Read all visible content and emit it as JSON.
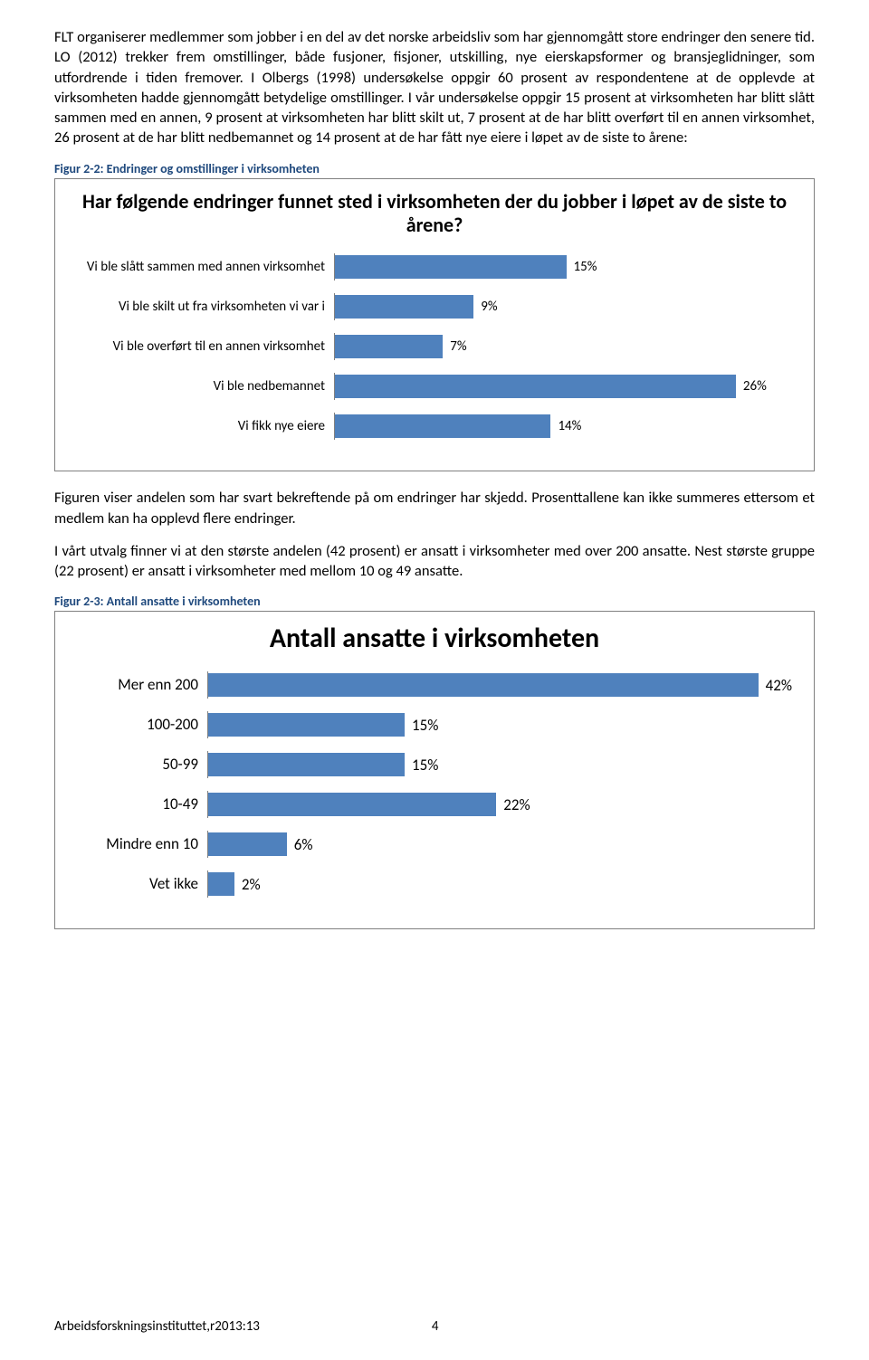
{
  "text": {
    "p1": "FLT organiserer medlemmer som jobber i en del av det norske arbeidsliv som har gjennomgått store endringer den senere tid. LO (2012) trekker frem omstillinger, både fusjoner, fisjoner, utskilling, nye eierskapsformer og bransjeglidninger, som utfordrende i tiden fremover. I Olbergs (1998) undersøkelse oppgir 60 prosent av respondentene at de opplevde at virksomheten hadde gjennomgått betydelige omstillinger. I vår undersøkelse oppgir 15 prosent at virksomheten har blitt slått sammen med en annen, 9 prosent at virksomheten har blitt skilt ut, 7 prosent at de har blitt overført til en annen virksomhet, 26 prosent at de har blitt nedbemannet og 14 prosent at de har fått nye eiere i løpet av de siste to årene:",
    "p2": "Figuren viser andelen som har svart bekreftende på om endringer har skjedd. Prosenttallene kan ikke summeres ettersom et medlem kan ha opplevd flere endringer.",
    "p3": "I vårt utvalg finner vi at den største andelen (42 prosent) er ansatt i virksomheter med over 200 ansatte. Nest største gruppe (22 prosent) er ansatt i virksomheter med mellom 10 og 49 ansatte."
  },
  "chart1": {
    "caption": "Figur 2-2: Endringer og omstillinger i virksomheten",
    "title": "Har følgende endringer funnet sted i virksomheten der du jobber i løpet av de siste to årene?",
    "title_fontsize": 22,
    "label_fontsize": 15,
    "value_fontsize": 15,
    "label_width": 290,
    "bar_color": "#4f81bd",
    "max_value": 30,
    "items": [
      {
        "label": "Vi ble slått sammen med annen virksomhet",
        "value": 15,
        "display": "15%"
      },
      {
        "label": "Vi ble skilt ut fra virksomheten vi var i",
        "value": 9,
        "display": "9%"
      },
      {
        "label": "Vi ble overført til en annen virksomhet",
        "value": 7,
        "display": "7%"
      },
      {
        "label": "Vi ble nedbemannet",
        "value": 26,
        "display": "26%"
      },
      {
        "label": "Vi fikk nye eiere",
        "value": 14,
        "display": "14%"
      }
    ]
  },
  "chart2": {
    "caption": "Figur 2-3: Antall ansatte i virksomheten",
    "title": "Antall ansatte i virksomheten",
    "title_fontsize": 30,
    "label_fontsize": 17,
    "value_fontsize": 17,
    "label_width": 150,
    "bar_color": "#4f81bd",
    "max_value": 45,
    "items": [
      {
        "label": "Mer enn 200",
        "value": 42,
        "display": "42%"
      },
      {
        "label": "100-200",
        "value": 15,
        "display": "15%"
      },
      {
        "label": "50-99",
        "value": 15,
        "display": "15%"
      },
      {
        "label": "10-49",
        "value": 22,
        "display": "22%"
      },
      {
        "label": "Mindre enn 10",
        "value": 6,
        "display": "6%"
      },
      {
        "label": "Vet ikke",
        "value": 2,
        "display": "2%"
      }
    ]
  },
  "footer": {
    "left": "Arbeidsforskningsinstituttet,r2013:13",
    "page": "4"
  }
}
